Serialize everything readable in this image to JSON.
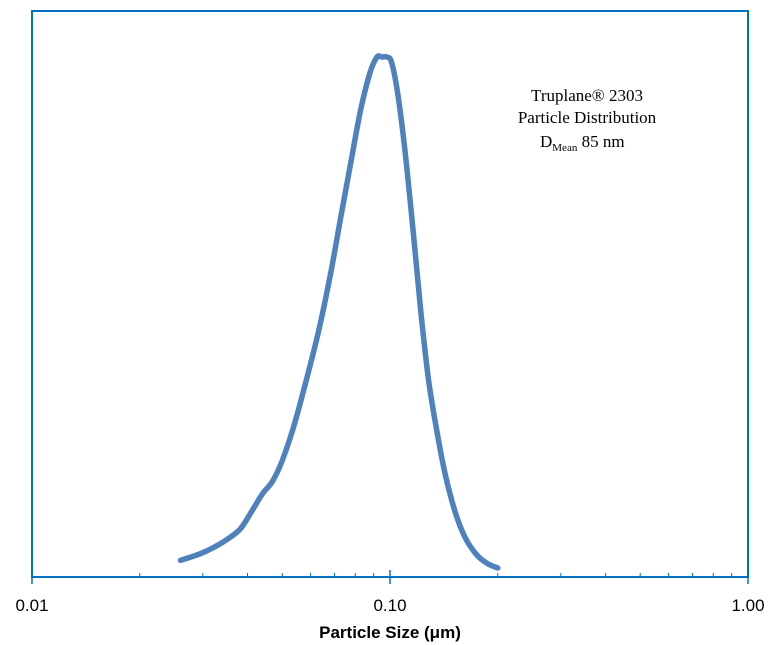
{
  "chart_data": {
    "type": "line",
    "x_scale": "log",
    "xlim": [
      0.01,
      1.0
    ],
    "xlabel": "Particle Size (μm)",
    "ylabel": "",
    "y_ticks_shown": false,
    "grid": false,
    "x_ticks": [
      "0.01",
      "0.10",
      "1.00"
    ],
    "annotation": {
      "line1": "Truplane® 2303",
      "line2": "Particle Distribution",
      "line3_main": "D",
      "line3_sub": "Mean",
      "line3_tail": " 85 nm"
    },
    "series": [
      {
        "color": "#4f81bd",
        "x": [
          0.026,
          0.03,
          0.034,
          0.038,
          0.041,
          0.044,
          0.047,
          0.05,
          0.054,
          0.058,
          0.063,
          0.068,
          0.073,
          0.078,
          0.083,
          0.088,
          0.092,
          0.095,
          0.098,
          0.101,
          0.105,
          0.11,
          0.116,
          0.122,
          0.128,
          0.135,
          0.143,
          0.152,
          0.162,
          0.175,
          0.188,
          0.2
        ],
        "y": [
          0.015,
          0.03,
          0.05,
          0.075,
          0.11,
          0.145,
          0.17,
          0.21,
          0.28,
          0.36,
          0.46,
          0.57,
          0.69,
          0.8,
          0.9,
          0.97,
          1.0,
          1.0,
          1.0,
          0.99,
          0.93,
          0.82,
          0.66,
          0.5,
          0.37,
          0.27,
          0.18,
          0.11,
          0.06,
          0.025,
          0.008,
          0.0
        ]
      }
    ]
  }
}
